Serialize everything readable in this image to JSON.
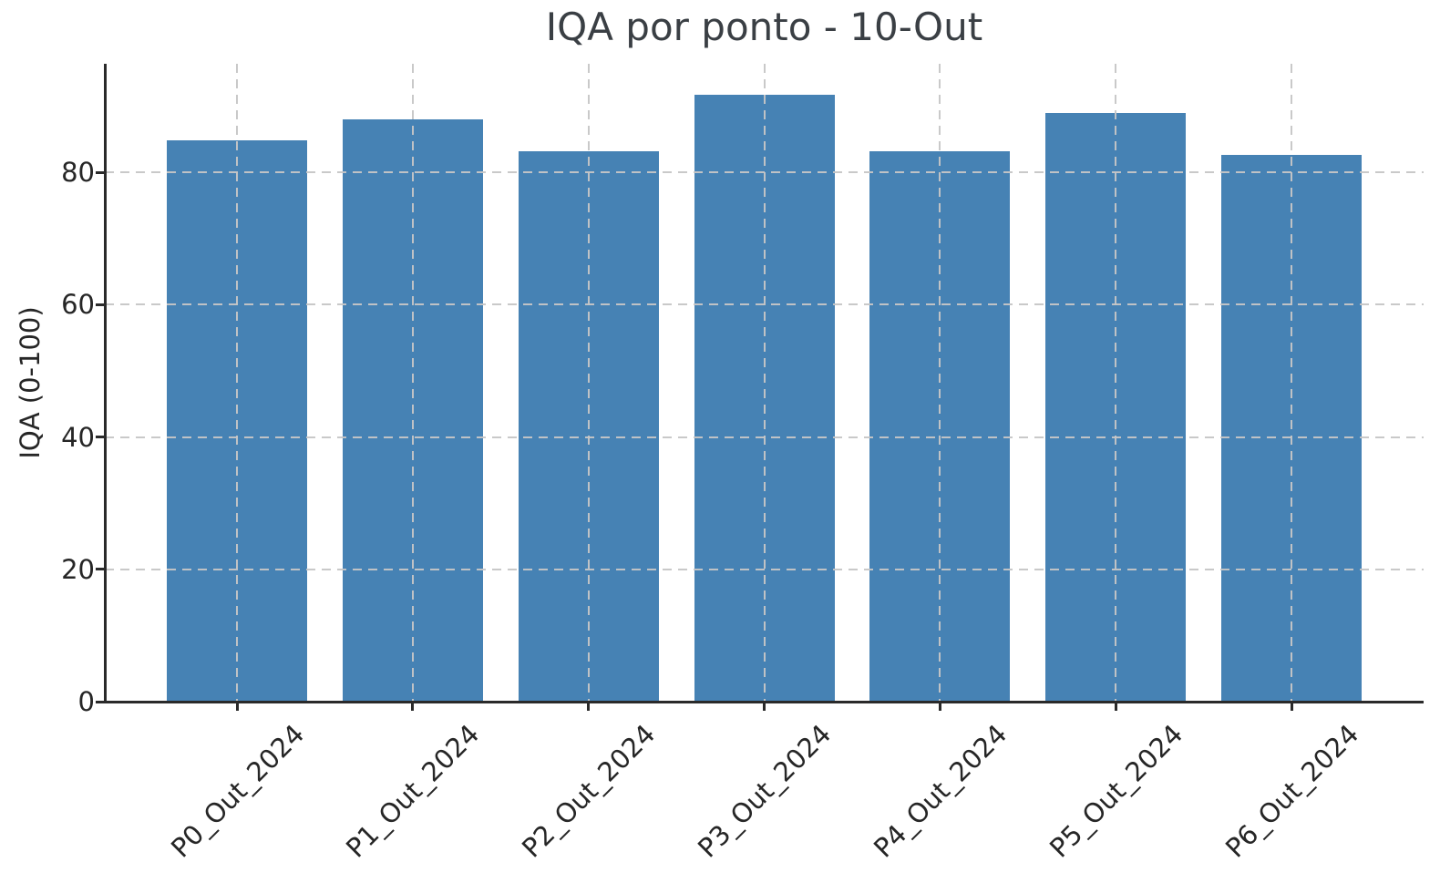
{
  "chart_data": {
    "type": "bar",
    "title": "IQA por ponto - 10-Out",
    "ylabel": "IQA (0-100)",
    "xlabel": "",
    "categories": [
      "P0_Out_2024",
      "P1_Out_2024",
      "P2_Out_2024",
      "P3_Out_2024",
      "P4_Out_2024",
      "P5_Out_2024",
      "P6_Out_2024"
    ],
    "values": [
      84.8,
      88.0,
      83.2,
      91.7,
      83.2,
      89.0,
      82.6
    ],
    "yticks": [
      0,
      20,
      40,
      60,
      80
    ],
    "ylim": [
      0,
      96.4
    ],
    "grid": true,
    "grid_style": "dashed",
    "grid_above_bars": true,
    "legend_position": "none",
    "colors": {
      "bar": "#4682b4",
      "grid": "#c8c8c8",
      "spine": "#2a2a2a",
      "tick_label": "#262626",
      "title": "#3a3f44"
    }
  }
}
